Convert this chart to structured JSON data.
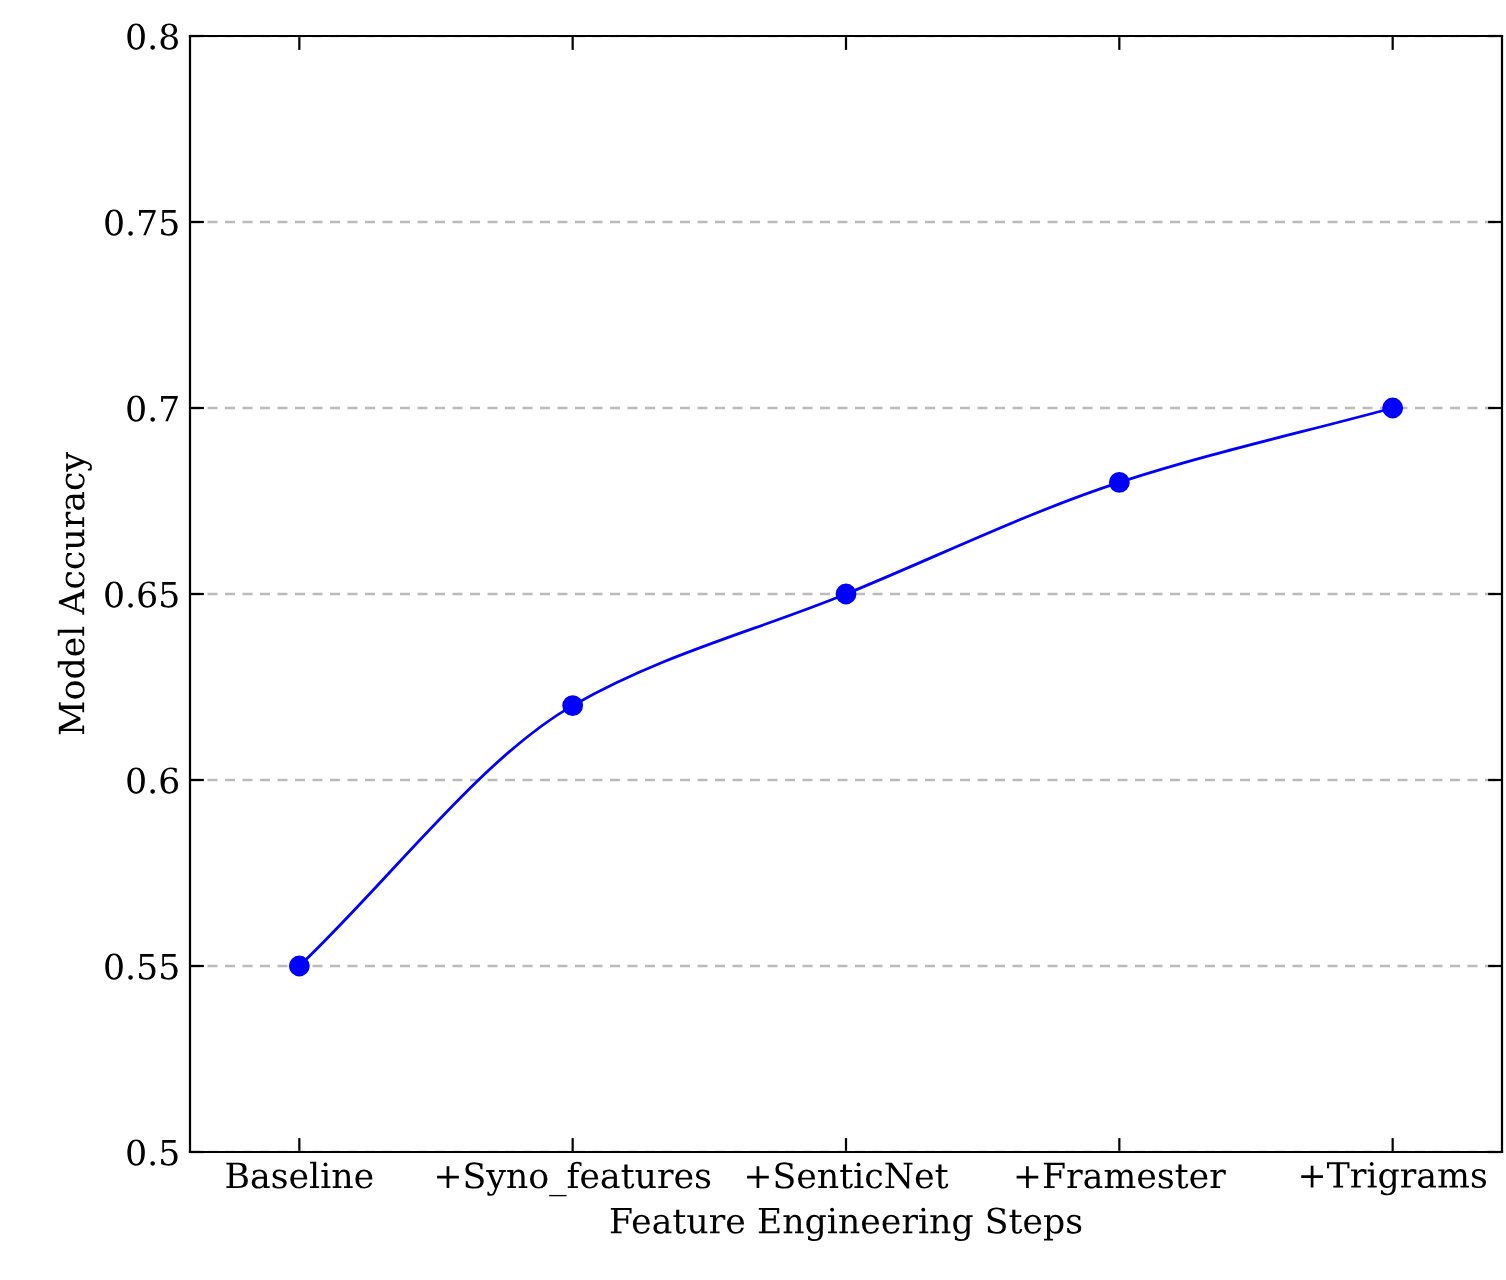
{
  "chart_data": {
    "type": "line",
    "xlabel": "Feature Engineering Steps",
    "ylabel": "Model Accuracy",
    "categories": [
      "Baseline",
      "+Syno_features",
      "+SenticNet",
      "+Framester",
      "+Trigrams"
    ],
    "series": [
      {
        "color": "#0000ff",
        "values": [
          0.55,
          0.62,
          0.65,
          0.68,
          0.7
        ]
      }
    ],
    "ylim": [
      0.5,
      0.8
    ],
    "yticks": [
      0.5,
      0.55,
      0.6,
      0.65,
      0.7,
      0.75,
      0.8
    ],
    "grid": "y",
    "marker": "circle",
    "line_style": "solid",
    "legend": false
  }
}
